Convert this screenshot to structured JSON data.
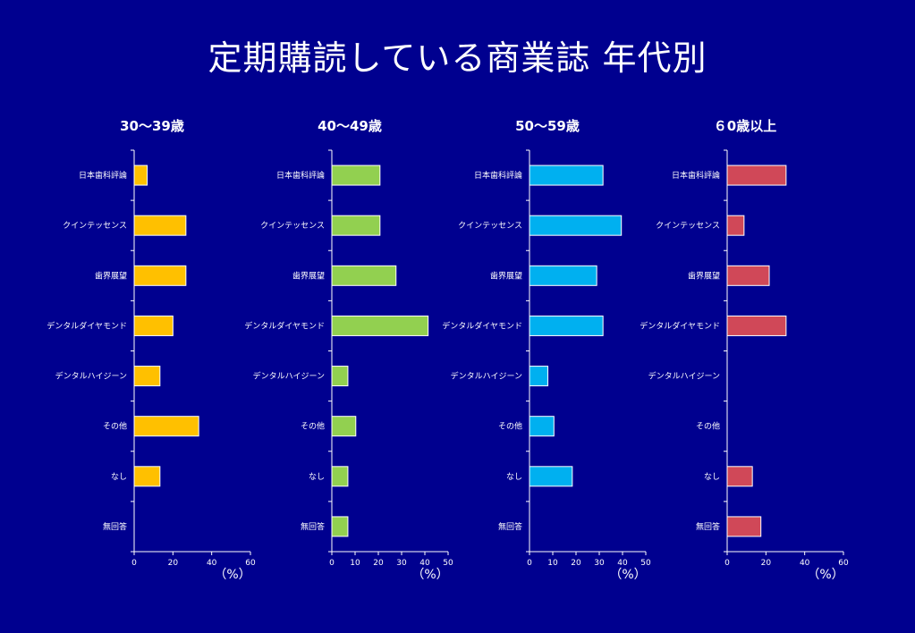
{
  "slide": {
    "title": "定期購読している商業誌 年代別"
  },
  "chart_data": [
    {
      "type": "bar",
      "title": "30～39歳",
      "categories": [
        "日本歯科評論",
        "クインテッセンス",
        "歯界展望",
        "デンタルダイヤモンド",
        "デンタルハイジーン",
        "その他",
        "なし",
        "無回答"
      ],
      "values": [
        6.7,
        26.7,
        26.7,
        20,
        13.3,
        33.3,
        13.3,
        0
      ],
      "xlim": [
        0,
        60
      ],
      "xticks": [
        0,
        20,
        40,
        60
      ],
      "xlabel": "（%）",
      "color": "#ffc000"
    },
    {
      "type": "bar",
      "title": "40～49歳",
      "categories": [
        "日本歯科評論",
        "クインテッセンス",
        "歯界展望",
        "デンタルダイヤモンド",
        "デンタルハイジーン",
        "その他",
        "なし",
        "無回答"
      ],
      "values": [
        20.7,
        20.7,
        27.6,
        41.4,
        6.9,
        10.3,
        6.9,
        6.9
      ],
      "xlim": [
        0,
        50
      ],
      "xticks": [
        0,
        10,
        20,
        30,
        40,
        50
      ],
      "xlabel": "（%）",
      "color": "#92d050"
    },
    {
      "type": "bar",
      "title": "50～59歳",
      "categories": [
        "日本歯科評論",
        "クインテッセンス",
        "歯界展望",
        "デンタルダイヤモンド",
        "デンタルハイジーン",
        "その他",
        "なし",
        "無回答"
      ],
      "values": [
        31.6,
        39.5,
        28.9,
        31.6,
        7.9,
        10.5,
        18.4,
        0
      ],
      "xlim": [
        0,
        50
      ],
      "xticks": [
        0,
        10,
        20,
        30,
        40,
        50
      ],
      "xlabel": "（%）",
      "color": "#00b0f0"
    },
    {
      "type": "bar",
      "title": "６0歳以上",
      "categories": [
        "日本歯科評論",
        "クインテッセンス",
        "歯界展望",
        "デンタルダイヤモンド",
        "デンタルハイジーン",
        "その他",
        "なし",
        "無回答"
      ],
      "values": [
        30.4,
        8.7,
        21.7,
        30.4,
        0,
        0,
        13,
        17.4
      ],
      "xlim": [
        0,
        60
      ],
      "xticks": [
        0,
        20,
        40,
        60
      ],
      "xlabel": "（%）",
      "color": "#d04858"
    }
  ]
}
